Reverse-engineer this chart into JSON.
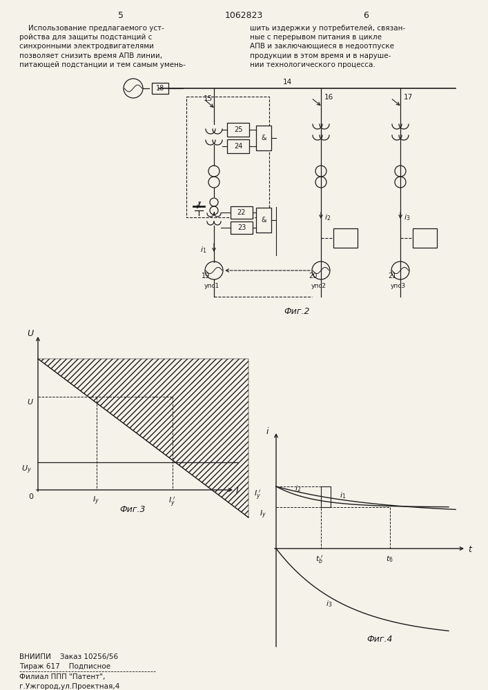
{
  "page_num_left": "5",
  "page_num_right": "6",
  "patent_num": "1062823",
  "text_left_lines": [
    "    Использование предлагаемого уст-",
    "ройства для защиты подстанций с",
    "синхронными электродвигателями",
    "позволяет снизить время АПВ линии,",
    "питающей подстанции и тем самым умень-"
  ],
  "text_right_lines": [
    "шить издержки у потребителей, связан-",
    "ные с перерывом питания в цикле",
    "АПВ и заключающиеся в недоотпуске",
    "продукции в этом время и в наруше-",
    "нии технологического процесса."
  ],
  "fig2_label": "Фиг.2",
  "fig3_label": "Фиг.3",
  "fig4_label": "Фиг.4",
  "footer_line1": "ВНИИПИ    Заказ 10256/56",
  "footer_line2": "Тираж 617    Подписное",
  "footer_line3": "Филиал ППП \"Патент\",",
  "footer_line4": "г.Ужгород,ул.Проектная,4",
  "bg_color": "#f5f2ea",
  "line_color": "#1a1a1a"
}
